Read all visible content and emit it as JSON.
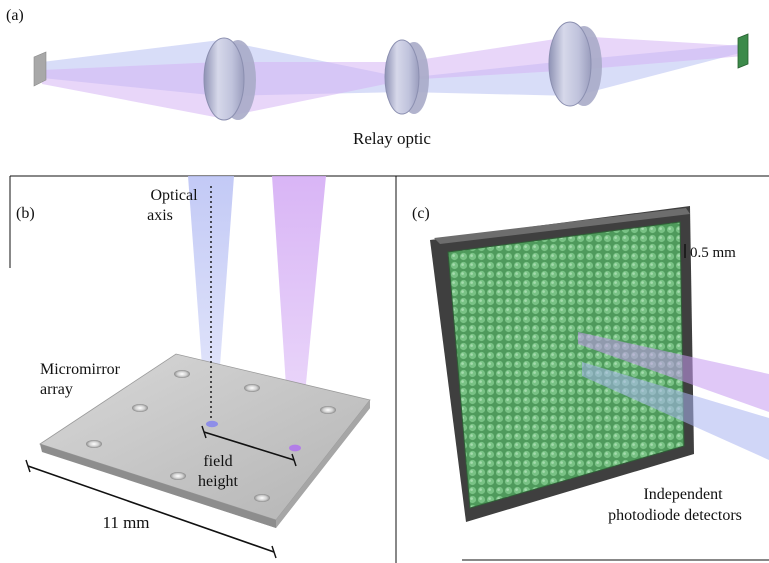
{
  "panel_a": {
    "tag": "(a)",
    "caption": "Relay optic"
  },
  "panel_b": {
    "tag": "(b)",
    "optical_axis_line1": "Optical",
    "optical_axis_line2": "axis",
    "micromirror_line1": "Micromirror",
    "micromirror_line2": "array",
    "field_line1": "field",
    "field_line2": "height",
    "size_label": "11 mm"
  },
  "panel_c": {
    "tag": "(c)",
    "scale_label": "0.5 mm",
    "detector_line1": "Independent",
    "detector_line2": "photodiode detectors"
  },
  "colors": {
    "beam_blue": "#aab4f0",
    "beam_purple": "#c79af0",
    "lens": "#b9bcd6",
    "detector_green": "#5fa86a",
    "frame_dark": "#4a4a4a",
    "plate": "#c9c9c9"
  }
}
